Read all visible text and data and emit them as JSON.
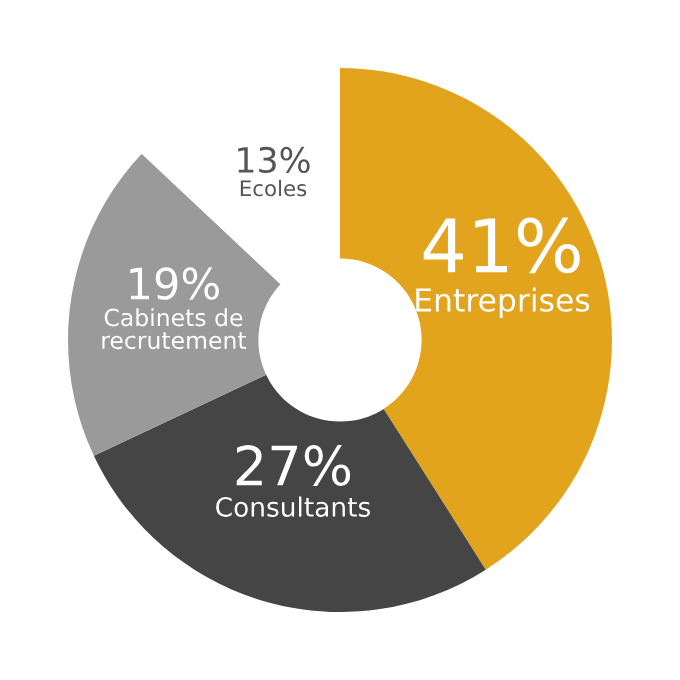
{
  "chart_data": {
    "type": "donut",
    "categories": [
      "Entreprises",
      "Consultants",
      "Cabinets de\nrecrutement",
      "Ecoles"
    ],
    "values": [
      41,
      27,
      19,
      13
    ],
    "value_labels": [
      "41%",
      "27%",
      "19%",
      "13%"
    ],
    "colors": [
      "#e2a41c",
      "#454545",
      "#9a9a9a",
      "#ffffff"
    ],
    "legend": false
  }
}
